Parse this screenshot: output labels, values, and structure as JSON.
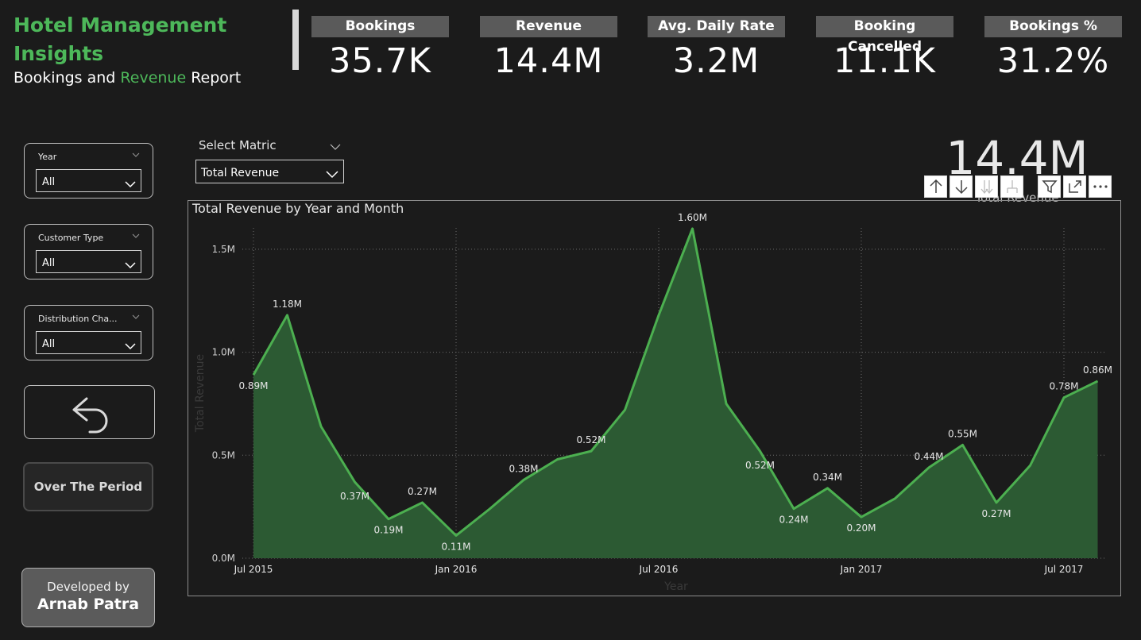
{
  "header": {
    "title": "Hotel Management Insights",
    "subtitle_part1": "Bookings and ",
    "subtitle_part2": "Revenue",
    "subtitle_part3": " Report"
  },
  "kpis": [
    {
      "label": "Bookings",
      "value": "35.7K"
    },
    {
      "label": "Revenue",
      "value": "14.4M"
    },
    {
      "label": "Avg. Daily Rate",
      "value": "3.2M"
    },
    {
      "label": "Booking Cancelled",
      "value": "11.1K"
    },
    {
      "label": "Bookings %",
      "value": "31.2%"
    }
  ],
  "filters": [
    {
      "label": "Year",
      "value": "All"
    },
    {
      "label": "Customer Type",
      "value": "All"
    },
    {
      "label": "Distribution Cha...",
      "value": "All"
    }
  ],
  "buttons": {
    "over_period": "Over The Period",
    "developed_by": "Developed by",
    "developer": "Arnab Patra"
  },
  "metric_selector": {
    "label": "Select Matric",
    "value": "Total Revenue"
  },
  "card": {
    "value": "14.4M",
    "label": "Total Revenue"
  },
  "colors": {
    "accent": "#4db85a",
    "line": "#4caf50",
    "area": "#2c5a33",
    "background": "#1b1b1b",
    "kpi_label_bg": "#5a5a5a"
  },
  "chart_data": {
    "type": "area",
    "title": "Total Revenue by Year and Month",
    "xlabel": "Year",
    "ylabel": "Total Revenue",
    "x": [
      "Jul 2015",
      "Aug 2015",
      "Sep 2015",
      "Oct 2015",
      "Nov 2015",
      "Dec 2015",
      "Jan 2016",
      "Feb 2016",
      "Mar 2016",
      "Apr 2016",
      "May 2016",
      "Jun 2016",
      "Jul 2016",
      "Aug 2016",
      "Sep 2016",
      "Oct 2016",
      "Nov 2016",
      "Dec 2016",
      "Jan 2017",
      "Feb 2017",
      "Mar 2017",
      "Apr 2017",
      "May 2017",
      "Jun 2017",
      "Jul 2017",
      "Aug 2017"
    ],
    "values": [
      0.89,
      1.18,
      0.64,
      0.37,
      0.19,
      0.27,
      0.11,
      0.24,
      0.38,
      0.48,
      0.52,
      0.72,
      1.18,
      1.6,
      0.75,
      0.52,
      0.24,
      0.34,
      0.2,
      0.29,
      0.44,
      0.55,
      0.27,
      0.45,
      0.78,
      0.86
    ],
    "data_labels": [
      "0.89M",
      "1.18M",
      null,
      "0.37M",
      "0.19M",
      "0.27M",
      "0.11M",
      null,
      "0.38M",
      null,
      "0.52M",
      null,
      null,
      "1.60M",
      null,
      "0.52M",
      "0.24M",
      "0.34M",
      "0.20M",
      null,
      "0.44M",
      "0.55M",
      "0.27M",
      null,
      "0.78M",
      "0.86M"
    ],
    "x_ticks": [
      "Jul 2015",
      "Jan 2016",
      "Jul 2016",
      "Jan 2017",
      "Jul 2017"
    ],
    "y_ticks": [
      "0.0M",
      "0.5M",
      "1.0M",
      "1.5M"
    ],
    "ylim": [
      0,
      1.5
    ],
    "grid": true,
    "unit": "M"
  }
}
